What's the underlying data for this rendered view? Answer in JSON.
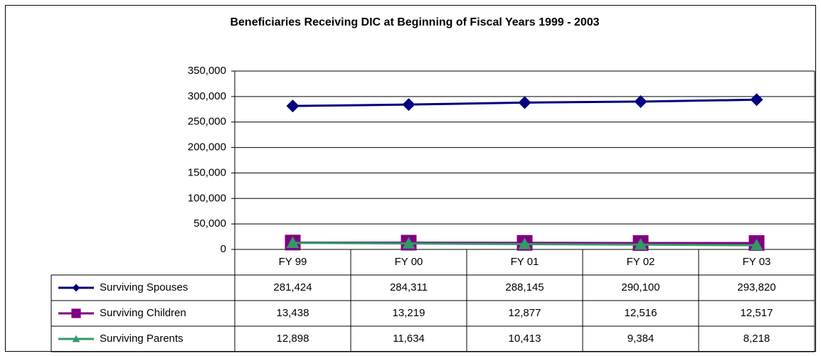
{
  "chart_data": {
    "type": "line",
    "title": "Beneficiaries Receiving DIC at Beginning of Fiscal Years 1999 - 2003",
    "categories": [
      "FY 99",
      "FY 00",
      "FY 01",
      "FY 02",
      "FY 03"
    ],
    "series": [
      {
        "name": "Surviving Spouses",
        "color": "#000080",
        "marker": "diamond",
        "values": [
          281424,
          284311,
          288145,
          290100,
          293820
        ],
        "value_labels": [
          "281,424",
          "284,311",
          "288,145",
          "290,100",
          "293,820"
        ]
      },
      {
        "name": "Surviving Children",
        "color": "#800080",
        "marker": "square",
        "values": [
          13438,
          13219,
          12877,
          12516,
          12517
        ],
        "value_labels": [
          "13,438",
          "13,219",
          "12,877",
          "12,516",
          "12,517"
        ]
      },
      {
        "name": "Surviving Parents",
        "color": "#339966",
        "marker": "triangle",
        "values": [
          12898,
          11634,
          10413,
          9384,
          8218
        ],
        "value_labels": [
          "12,898",
          "11,634",
          "10,413",
          "9,384",
          "8,218"
        ]
      }
    ],
    "ylim": [
      0,
      350000
    ],
    "yticks": [
      0,
      {
        "value": 50000,
        "label": "50,000"
      },
      {
        "value": 100000,
        "label": "100,000"
      },
      {
        "value": 150000,
        "label": "150,000"
      },
      {
        "value": 200000,
        "label": "200,000"
      },
      {
        "value": 250000,
        "label": "250,000"
      },
      {
        "value": 300000,
        "label": "300,000"
      },
      {
        "value": 350000,
        "label": "350,000"
      }
    ],
    "grid": true
  }
}
